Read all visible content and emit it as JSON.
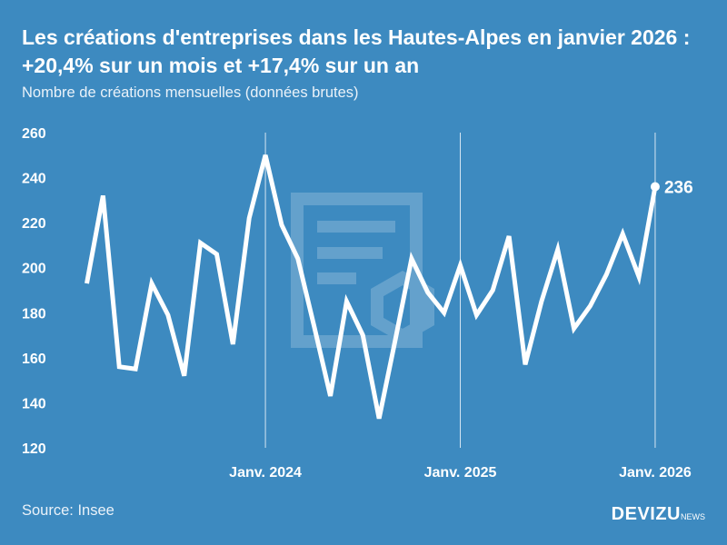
{
  "header": {
    "title": "Les créations d'entreprises dans les Hautes-Alpes en janvier 2026 : +20,4% sur un mois et +17,4% sur un an",
    "subtitle": "Nombre de créations mensuelles (données brutes)"
  },
  "footer": {
    "source": "Source: Insee",
    "logo_main": "DEVIZU",
    "logo_sub": "NEWS"
  },
  "colors": {
    "background": "#3d8ac0",
    "line": "#ffffff"
  },
  "chart_data": {
    "type": "line",
    "title": "Les créations d'entreprises dans les Hautes-Alpes en janvier 2026 : +20,4% sur un mois et +17,4% sur un an",
    "ylabel": "",
    "xlabel": "",
    "ylim": [
      120,
      260
    ],
    "yticks": [
      120,
      140,
      160,
      180,
      200,
      220,
      240,
      260
    ],
    "xtick_labels": [
      {
        "label": "Janv. 2024",
        "index": 11
      },
      {
        "label": "Janv. 2025",
        "index": 23
      },
      {
        "label": "Janv. 2026",
        "index": 35
      }
    ],
    "x": [
      "2023-02",
      "2023-03",
      "2023-04",
      "2023-05",
      "2023-06",
      "2023-07",
      "2023-08",
      "2023-09",
      "2023-10",
      "2023-11",
      "2023-12",
      "2024-01",
      "2024-02",
      "2024-03",
      "2024-04",
      "2024-05",
      "2024-06",
      "2024-07",
      "2024-08",
      "2024-09",
      "2024-10",
      "2024-11",
      "2024-12",
      "2025-01",
      "2025-02",
      "2025-03",
      "2025-04",
      "2025-05",
      "2025-06",
      "2025-07",
      "2025-08",
      "2025-09",
      "2025-10",
      "2025-11",
      "2025-12",
      "2026-01"
    ],
    "values": [
      193,
      232,
      156,
      155,
      193,
      179,
      152,
      211,
      206,
      166,
      222,
      250,
      219,
      204,
      174,
      143,
      185,
      170,
      133,
      168,
      204,
      189,
      180,
      201,
      179,
      190,
      214,
      157,
      185,
      208,
      173,
      183,
      197,
      215,
      196,
      236
    ],
    "last_label": "236",
    "grid": "vertical lines at January"
  }
}
